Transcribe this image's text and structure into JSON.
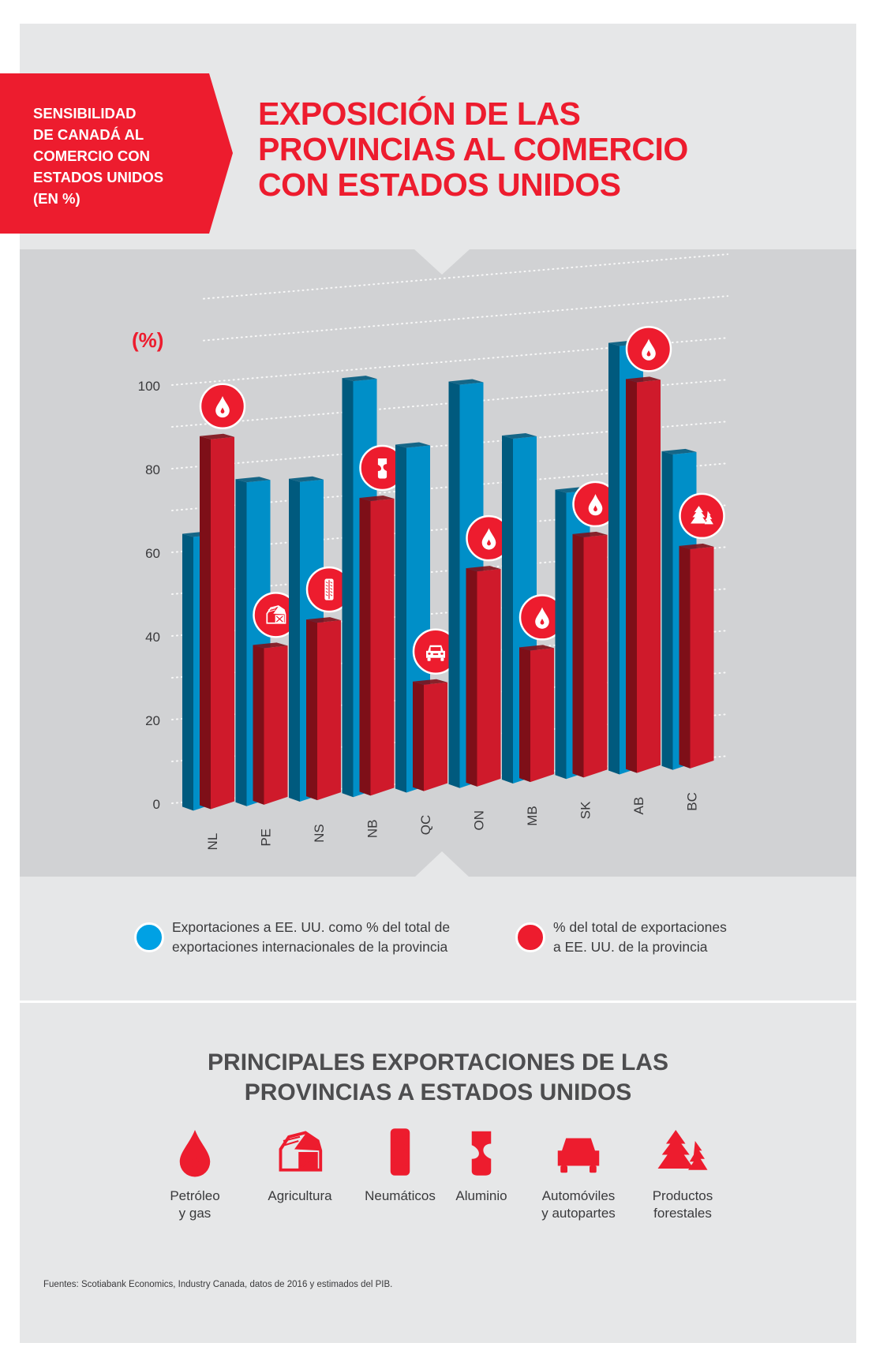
{
  "header": {
    "tag_lines": [
      "SENSIBILIDAD",
      "DE CANADÁ AL",
      "COMERCIO CON",
      "ESTADOS UNIDOS",
      "(EN %)"
    ],
    "title_lines": [
      "EXPOSICIÓN DE LAS",
      "PROVINCIAS AL COMERCIO",
      "CON ESTADOS UNIDOS"
    ]
  },
  "colors": {
    "red": "#ed1c2e",
    "red_bar": "#cf1a2b",
    "red_bar_side": "#7e0f18",
    "blue_bar": "#008fc8",
    "blue_bar_side": "#005a7e",
    "blue_legend": "#00a1e4"
  },
  "chart_data": {
    "type": "bar",
    "title": "Exposición de las provincias al comercio con Estados Unidos",
    "ylabel": "(%)",
    "xlabel": "",
    "ylim": [
      0,
      100
    ],
    "yticks": [
      "0",
      "20",
      "40",
      "60",
      "80",
      "100"
    ],
    "grid": true,
    "categories": [
      "NL",
      "PE",
      "NS",
      "NB",
      "QC",
      "ON",
      "MB",
      "SK",
      "AB",
      "BC"
    ],
    "series": [
      {
        "name": "Exportaciones a EE. UU. como % del total de exportaciones internacionales de la provincia",
        "color": "blue",
        "values": [
          63,
          75,
          74,
          97,
          80,
          94,
          80,
          66,
          100,
          73
        ]
      },
      {
        "name": "% del total de exportaciones a EE. UU. de la provincia",
        "color": "red",
        "values": [
          86,
          35,
          40,
          68,
          23,
          49,
          29,
          55,
          91,
          50
        ]
      }
    ],
    "main_export_icons": [
      "oil-drop",
      "barn",
      "tire",
      "can",
      "car",
      "oil-drop",
      "oil-drop",
      "oil-drop",
      "oil-drop",
      "trees"
    ]
  },
  "legend": [
    {
      "lines": [
        "Exportaciones a EE. UU. como % del total de",
        "exportaciones internacionales de la provincia"
      ]
    },
    {
      "lines": [
        "% del total de exportaciones",
        "a EE. UU. de la provincia"
      ]
    }
  ],
  "exports_section": {
    "title_lines": [
      "PRINCIPALES EXPORTACIONES DE LAS",
      "PROVINCIAS A ESTADOS UNIDOS"
    ],
    "items": [
      {
        "icon": "oil-drop",
        "lines": [
          "Petróleo",
          "y gas"
        ]
      },
      {
        "icon": "barn",
        "lines": [
          "Agricultura"
        ]
      },
      {
        "icon": "tire",
        "lines": [
          "Neumáticos"
        ]
      },
      {
        "icon": "can",
        "lines": [
          "Aluminio"
        ]
      },
      {
        "icon": "car",
        "lines": [
          "Automóviles",
          "y autopartes"
        ]
      },
      {
        "icon": "trees",
        "lines": [
          "Productos",
          "forestales"
        ]
      }
    ]
  },
  "footer": {
    "source": "Fuentes: Scotiabank Economics, Industry Canada, datos de 2016 y estimados del PIB."
  }
}
